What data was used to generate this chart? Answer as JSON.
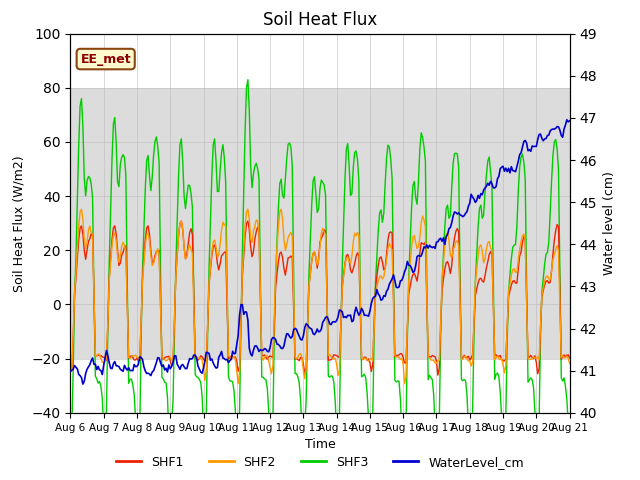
{
  "title": "Soil Heat Flux",
  "xlabel": "Time",
  "ylabel_left": "Soil Heat Flux (W/m2)",
  "ylabel_right": "Water level (cm)",
  "ylim_left": [
    -40,
    100
  ],
  "ylim_right": [
    40.0,
    49.0
  ],
  "yticks_left": [
    -40,
    -20,
    0,
    20,
    40,
    60,
    80,
    100
  ],
  "yticks_right": [
    40.0,
    41.0,
    42.0,
    43.0,
    44.0,
    45.0,
    46.0,
    47.0,
    48.0,
    49.0
  ],
  "xtick_labels": [
    "Aug 6",
    "Aug 7",
    "Aug 8",
    "Aug 9",
    "Aug 10",
    "Aug 11",
    "Aug 12",
    "Aug 13",
    "Aug 14",
    "Aug 15",
    "Aug 16",
    "Aug 17",
    "Aug 18",
    "Aug 19",
    "Aug 20",
    "Aug 21"
  ],
  "station_label": "EE_met",
  "station_label_color": "#8B0000",
  "station_box_facecolor": "#FFFACD",
  "station_box_edgecolor": "#8B4513",
  "colors": {
    "SHF1": "#EE2200",
    "SHF2": "#FF9900",
    "SHF3": "#00CC00",
    "WaterLevel_cm": "#0000CC"
  },
  "legend_labels": [
    "SHF1",
    "SHF2",
    "SHF3",
    "WaterLevel_cm"
  ],
  "shaded_region_low": -20,
  "shaded_region_high": 80,
  "shaded_color": "#DCDCDC",
  "grid_color": "#BBBBBB",
  "background_color": "#FFFFFF"
}
